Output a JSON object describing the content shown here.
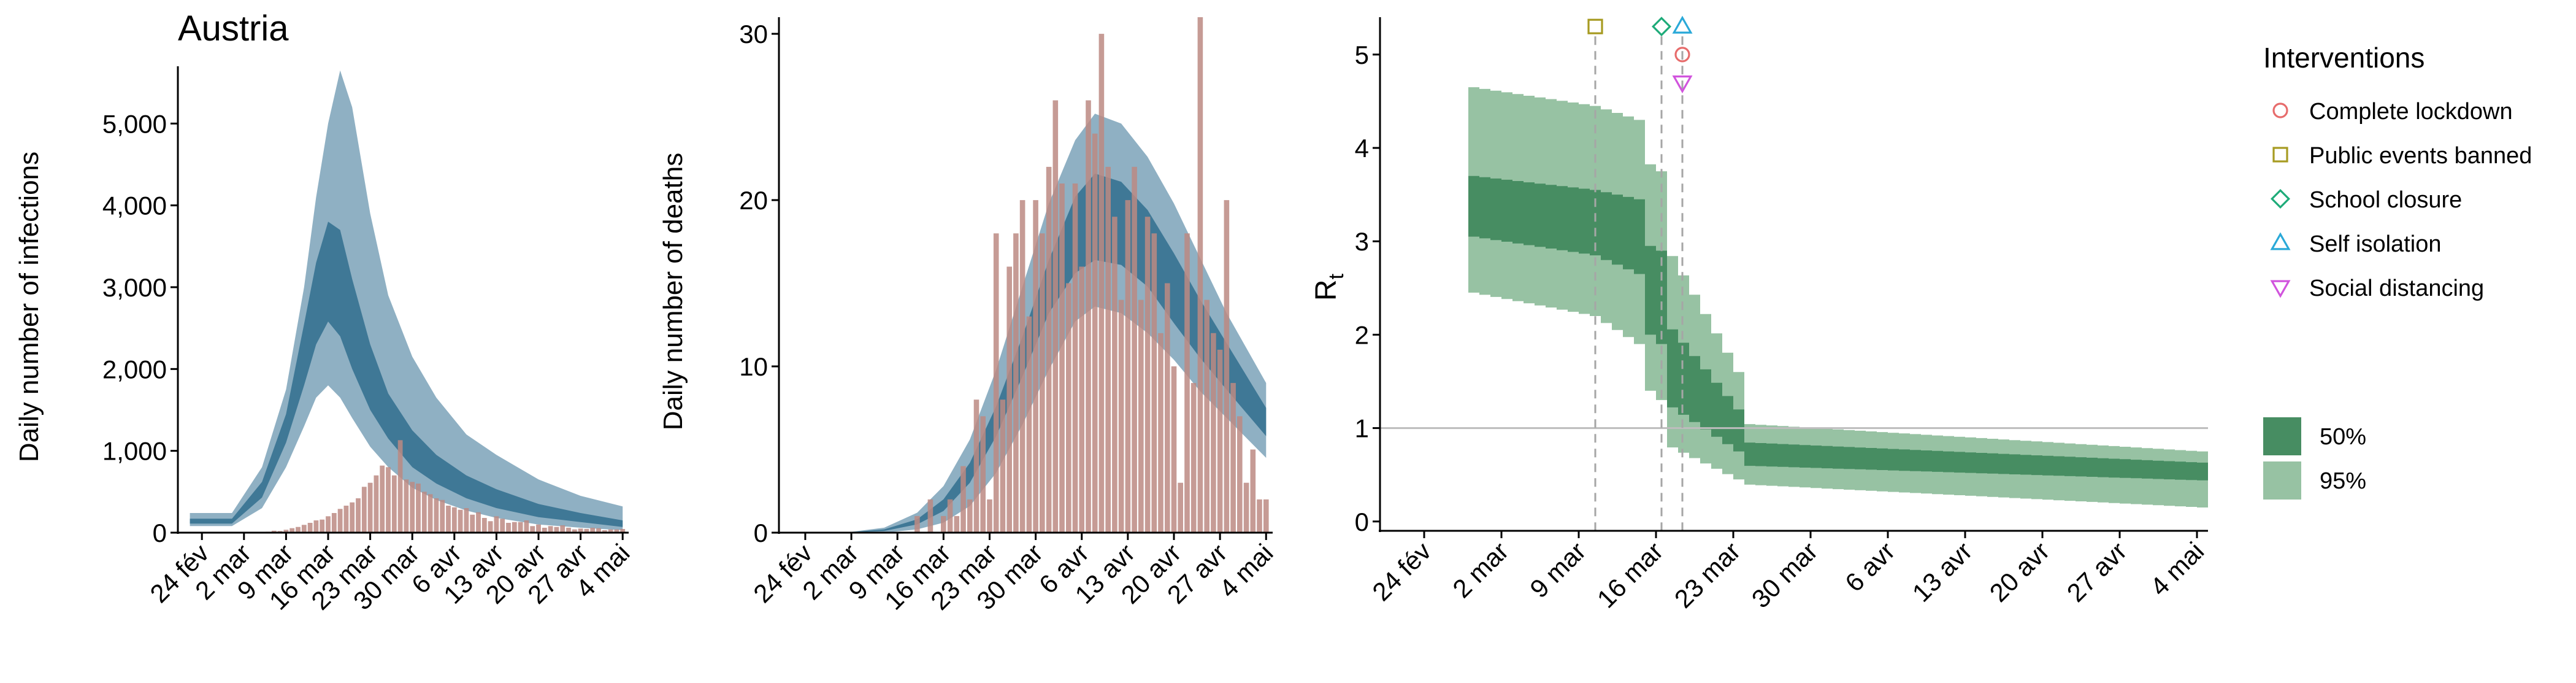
{
  "figure_title": "Austria",
  "colors": {
    "bars": "#bc8a83",
    "infections_95": "#8fb0c3",
    "infections_50": "#3f7896",
    "rt_95": "#97c2a3",
    "rt_50": "#478d62",
    "threshold_line": "#bdbdbd",
    "intervention_line": "#a6a6a6",
    "complete_lockdown": "#e76c6c",
    "public_events_banned": "#a79b22",
    "school_closure": "#1eab79",
    "self_isolation": "#2aa9d8",
    "social_distancing": "#d154dd"
  },
  "date_ticks": [
    "24 fév",
    "2 mar",
    "9 mar",
    "16 mar",
    "23 mar",
    "30 mar",
    "6 avr",
    "13 avr",
    "20 avr",
    "27 avr",
    "4 mai"
  ],
  "chart_data": [
    {
      "type": "area",
      "title": "Austria",
      "xlabel": "",
      "ylabel": "Daily number of infections",
      "ylim": [
        0,
        5700
      ],
      "y_ticks": [
        "0",
        "1,000",
        "2,000",
        "3,000",
        "4,000",
        "5,000"
      ],
      "y_tick_values": [
        0,
        1000,
        2000,
        3000,
        4000,
        5000
      ],
      "x_range": [
        "2020-02-20",
        "2020-05-05"
      ],
      "band_x": [
        "2020-02-22",
        "2020-02-29",
        "2020-03-05",
        "2020-03-09",
        "2020-03-12",
        "2020-03-14",
        "2020-03-16",
        "2020-03-18",
        "2020-03-20",
        "2020-03-23",
        "2020-03-26",
        "2020-03-30",
        "2020-04-03",
        "2020-04-08",
        "2020-04-13",
        "2020-04-20",
        "2020-04-27",
        "2020-05-04"
      ],
      "bands": [
        {
          "level": "95%",
          "lower": [
            80,
            80,
            300,
            800,
            1300,
            1650,
            1800,
            1650,
            1400,
            1050,
            800,
            550,
            400,
            270,
            180,
            100,
            60,
            30
          ],
          "upper": [
            240,
            240,
            800,
            1750,
            3000,
            4100,
            5000,
            5650,
            5200,
            3900,
            2900,
            2150,
            1650,
            1200,
            950,
            650,
            450,
            320
          ]
        },
        {
          "level": "50%",
          "lower": [
            110,
            110,
            430,
            1100,
            1800,
            2300,
            2580,
            2400,
            2000,
            1500,
            1150,
            800,
            600,
            420,
            300,
            190,
            130,
            70
          ],
          "upper": [
            170,
            170,
            620,
            1450,
            2550,
            3300,
            3800,
            3700,
            3100,
            2300,
            1700,
            1250,
            950,
            700,
            530,
            350,
            240,
            150
          ]
        }
      ],
      "bars_x": [
        "2020-02-25",
        "2020-02-26",
        "2020-02-27",
        "2020-02-28",
        "2020-02-29",
        "2020-03-01",
        "2020-03-02",
        "2020-03-03",
        "2020-03-04",
        "2020-03-05",
        "2020-03-06",
        "2020-03-07",
        "2020-03-08",
        "2020-03-09",
        "2020-03-10",
        "2020-03-11",
        "2020-03-12",
        "2020-03-13",
        "2020-03-14",
        "2020-03-15",
        "2020-03-16",
        "2020-03-17",
        "2020-03-18",
        "2020-03-19",
        "2020-03-20",
        "2020-03-21",
        "2020-03-22",
        "2020-03-23",
        "2020-03-24",
        "2020-03-25",
        "2020-03-26",
        "2020-03-27",
        "2020-03-28",
        "2020-03-29",
        "2020-03-30",
        "2020-03-31",
        "2020-04-01",
        "2020-04-02",
        "2020-04-03",
        "2020-04-04",
        "2020-04-05",
        "2020-04-06",
        "2020-04-07",
        "2020-04-08",
        "2020-04-09",
        "2020-04-10",
        "2020-04-11",
        "2020-04-12",
        "2020-04-13",
        "2020-04-14",
        "2020-04-15",
        "2020-04-16",
        "2020-04-17",
        "2020-04-18",
        "2020-04-19",
        "2020-04-20",
        "2020-04-21",
        "2020-04-22",
        "2020-04-23",
        "2020-04-24",
        "2020-04-25",
        "2020-04-26",
        "2020-04-27",
        "2020-04-28",
        "2020-04-29",
        "2020-04-30",
        "2020-05-01",
        "2020-05-02",
        "2020-05-03",
        "2020-05-04"
      ],
      "bars_values": [
        2,
        0,
        1,
        2,
        5,
        4,
        3,
        6,
        8,
        10,
        12,
        24,
        20,
        35,
        55,
        70,
        95,
        120,
        150,
        160,
        200,
        240,
        290,
        330,
        370,
        420,
        560,
        610,
        700,
        820,
        800,
        700,
        1130,
        650,
        620,
        600,
        500,
        470,
        420,
        400,
        330,
        310,
        280,
        300,
        220,
        250,
        180,
        140,
        200,
        170,
        120,
        130,
        130,
        150,
        80,
        100,
        60,
        80,
        70,
        90,
        60,
        40,
        50,
        45,
        60,
        55,
        30,
        40,
        40,
        45
      ]
    },
    {
      "type": "area",
      "xlabel": "",
      "ylabel": "Daily number of deaths",
      "ylim": [
        0,
        31
      ],
      "y_ticks": [
        "0",
        "10",
        "20",
        "30"
      ],
      "y_tick_values": [
        0,
        10,
        20,
        30
      ],
      "x_range": [
        "2020-02-20",
        "2020-05-05"
      ],
      "band_x": [
        "2020-02-22",
        "2020-03-01",
        "2020-03-07",
        "2020-03-12",
        "2020-03-16",
        "2020-03-20",
        "2020-03-24",
        "2020-03-28",
        "2020-04-01",
        "2020-04-05",
        "2020-04-08",
        "2020-04-12",
        "2020-04-16",
        "2020-04-20",
        "2020-04-24",
        "2020-04-28",
        "2020-05-04"
      ],
      "bands": [
        {
          "level": "95%",
          "lower": [
            0,
            0,
            0,
            0.2,
            0.6,
            1.6,
            3.6,
            6.5,
            9.8,
            12.7,
            13.6,
            13.2,
            12,
            10.4,
            8.5,
            6.9,
            4.5
          ],
          "upper": [
            0,
            0,
            0.3,
            1.2,
            2.8,
            5.6,
            9.8,
            14.8,
            19.8,
            23.6,
            25.2,
            24.6,
            22.6,
            19.8,
            16.5,
            13.2,
            9
          ]
        },
        {
          "level": "50%",
          "lower": [
            0,
            0,
            0.1,
            0.5,
            1.3,
            3,
            5.8,
            9.4,
            13.2,
            15.6,
            16.4,
            16.1,
            14.8,
            12.6,
            10.5,
            8.6,
            5.8
          ],
          "upper": [
            0,
            0,
            0.2,
            0.8,
            2,
            4.2,
            7.6,
            11.8,
            16.4,
            20.2,
            21.6,
            21.1,
            19.4,
            16.8,
            14,
            11.4,
            7.5
          ]
        }
      ],
      "bars_x": [
        "2020-03-12",
        "2020-03-13",
        "2020-03-14",
        "2020-03-15",
        "2020-03-16",
        "2020-03-17",
        "2020-03-18",
        "2020-03-19",
        "2020-03-20",
        "2020-03-21",
        "2020-03-22",
        "2020-03-23",
        "2020-03-24",
        "2020-03-25",
        "2020-03-26",
        "2020-03-27",
        "2020-03-28",
        "2020-03-29",
        "2020-03-30",
        "2020-03-31",
        "2020-04-01",
        "2020-04-02",
        "2020-04-03",
        "2020-04-04",
        "2020-04-05",
        "2020-04-06",
        "2020-04-07",
        "2020-04-08",
        "2020-04-09",
        "2020-04-10",
        "2020-04-11",
        "2020-04-12",
        "2020-04-13",
        "2020-04-14",
        "2020-04-15",
        "2020-04-16",
        "2020-04-17",
        "2020-04-18",
        "2020-04-19",
        "2020-04-20",
        "2020-04-21",
        "2020-04-22",
        "2020-04-23",
        "2020-04-24",
        "2020-04-25",
        "2020-04-26",
        "2020-04-27",
        "2020-04-28",
        "2020-04-29",
        "2020-04-30",
        "2020-05-01",
        "2020-05-02",
        "2020-05-03",
        "2020-05-04"
      ],
      "bars_values": [
        1,
        0,
        2,
        0,
        1,
        2,
        1,
        4,
        2,
        8,
        7,
        2,
        18,
        8,
        16,
        18,
        20,
        13,
        20,
        18,
        22,
        26,
        21,
        15,
        21,
        16,
        26,
        24,
        30,
        22,
        19,
        14,
        20,
        22,
        14,
        19,
        18,
        12,
        15,
        10,
        3,
        18,
        9,
        31,
        14,
        12,
        11,
        20,
        9,
        7,
        3,
        5,
        2,
        2
      ]
    },
    {
      "type": "area",
      "xlabel": "",
      "ylabel": "R",
      "ylabel_subscript": "t",
      "ylim": [
        -0.1,
        5.4
      ],
      "y_ticks": [
        "0",
        "1",
        "2",
        "3",
        "4",
        "5"
      ],
      "y_tick_values": [
        0,
        1,
        2,
        3,
        4,
        5
      ],
      "x_range": [
        "2020-02-20",
        "2020-05-05"
      ],
      "rt_days_start": "2020-02-28",
      "rt_days_end": "2020-05-04",
      "rt_segments": [
        {
          "from": "2020-02-28",
          "to": "2020-03-10",
          "median": [
            3.4,
            3.2
          ],
          "iqr": [
            [
              3.05,
              3.7
            ],
            [
              2.85,
              3.55
            ]
          ],
          "ci95": [
            [
              2.45,
              4.65
            ],
            [
              2.2,
              4.45
            ]
          ]
        },
        {
          "from": "2020-03-10",
          "to": "2020-03-14",
          "median": [
            3.2,
            3.05
          ],
          "iqr": [
            [
              2.85,
              3.55
            ],
            [
              2.65,
              3.45
            ]
          ],
          "ci95": [
            [
              2.2,
              4.45
            ],
            [
              1.9,
              4.3
            ]
          ]
        },
        {
          "from": "2020-03-14",
          "to": "2020-03-16",
          "median": [
            2.55,
            2.4
          ],
          "iqr": [
            [
              2.1,
              3.0
            ],
            [
              1.9,
              2.9
            ]
          ],
          "ci95": [
            [
              1.5,
              3.9
            ],
            [
              1.3,
              3.75
            ]
          ]
        },
        {
          "from": "2020-03-16",
          "to": "2020-03-23",
          "median": [
            1.75,
            0.95
          ],
          "iqr": [
            [
              1.3,
              2.2
            ],
            [
              0.75,
              1.2
            ]
          ],
          "ci95": [
            [
              0.85,
              3.05
            ],
            [
              0.45,
              1.6
            ]
          ]
        },
        {
          "from": "2020-03-23",
          "to": "2020-05-04",
          "median": [
            0.7,
            0.53
          ],
          "iqr": [
            [
              0.6,
              0.85
            ],
            [
              0.44,
              0.63
            ]
          ],
          "ci95": [
            [
              0.4,
              1.05
            ],
            [
              0.15,
              0.75
            ]
          ]
        }
      ],
      "threshold": 1,
      "interventions": [
        {
          "name": "Public events banned",
          "date": "2020-03-10",
          "y": 5.3,
          "marker": "square",
          "color_key": "public_events_banned"
        },
        {
          "name": "School closure",
          "date": "2020-03-16",
          "y": 5.3,
          "marker": "diamond",
          "color_key": "school_closure"
        },
        {
          "name": "Self isolation",
          "date": "2020-03-16",
          "y": 5.3,
          "marker": "triangle-up",
          "color_key": "self_isolation",
          "offset": 1
        },
        {
          "name": "Complete lockdown",
          "date": "2020-03-16",
          "y": 5.0,
          "marker": "circle",
          "color_key": "complete_lockdown",
          "offset": 1
        },
        {
          "name": "Social distancing",
          "date": "2020-03-16",
          "y": 4.7,
          "marker": "triangle-down",
          "color_key": "social_distancing",
          "offset": 1
        }
      ]
    }
  ],
  "legend": {
    "title": "Interventions",
    "items": [
      {
        "label": "Complete lockdown",
        "marker": "circle",
        "color_key": "complete_lockdown"
      },
      {
        "label": "Public events banned",
        "marker": "square",
        "color_key": "public_events_banned"
      },
      {
        "label": "School closure",
        "marker": "diamond",
        "color_key": "school_closure"
      },
      {
        "label": "Self isolation",
        "marker": "triangle-up",
        "color_key": "self_isolation"
      },
      {
        "label": "Social distancing",
        "marker": "triangle-down",
        "color_key": "social_distancing"
      }
    ],
    "band_items": [
      {
        "label": "50%",
        "color_key": "rt_50"
      },
      {
        "label": "95%",
        "color_key": "rt_95"
      }
    ]
  }
}
